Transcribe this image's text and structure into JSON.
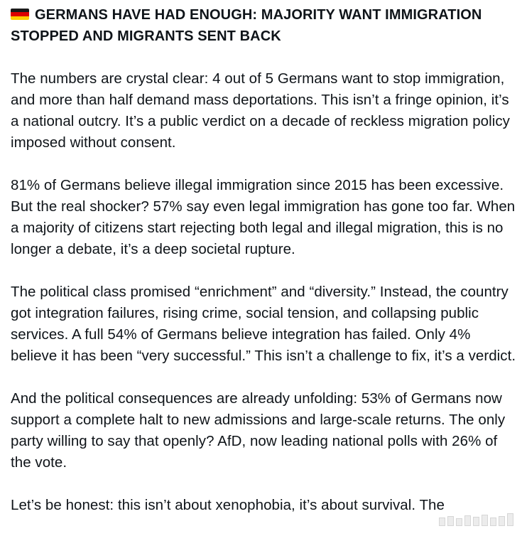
{
  "post": {
    "flag_icon": "germany-flag-icon",
    "headline": "GERMANS HAVE HAD ENOUGH: MAJORITY WANT IMMIGRATION STOPPED AND MIGRANTS SENT BACK",
    "paragraphs": [
      "The numbers are crystal clear: 4 out of 5 Germans want to stop immigration, and more than half demand mass deportations. This isn’t a fringe opinion, it’s a national outcry. It’s a public verdict on a decade of reckless migration policy imposed without consent.",
      "81% of Germans believe illegal immigration since 2015 has been excessive. But the real shocker? 57% say even legal immigration has gone too far. When a majority of citizens start rejecting both legal and illegal migration, this is no longer a debate, it’s a deep societal rupture.",
      "The political class promised “enrichment” and “diversity.” Instead, the country got integration failures, rising crime, social tension, and collapsing public services. A full 54% of Germans believe integration has failed. Only 4% believe it has been “very successful.” This isn’t a challenge to fix, it’s a verdict.",
      "And the political consequences are already unfolding: 53% of Germans now support a complete halt to new admissions and large-scale returns. The only party willing to say that openly? AfD, now leading national polls with 26% of the vote.",
      "Let’s be honest: this isn’t about xenophobia, it’s about survival. The"
    ]
  },
  "colors": {
    "text": "#0f1419",
    "flag_black": "#1a1a1a",
    "flag_red": "#dd0000",
    "flag_gold": "#ffce00"
  },
  "watermark_icon": "watermark-bars-icon"
}
